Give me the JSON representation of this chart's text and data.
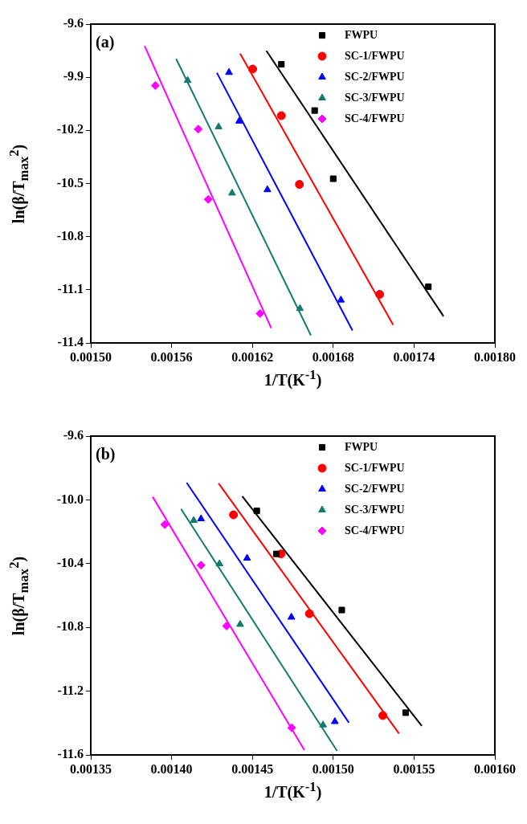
{
  "chart_data": [
    {
      "type": "scatter",
      "title": "(a)",
      "xlabel": "1/T(K$^{-1}$)",
      "ylabel": "ln(β/T$_{max}$$^{2}$)",
      "xlim": [
        0.0015,
        0.0018
      ],
      "xticks": [
        {
          "value": 0.0015,
          "label": "0.00150"
        },
        {
          "value": 0.00156,
          "label": "0.00156"
        },
        {
          "value": 0.00162,
          "label": "0.00162"
        },
        {
          "value": 0.00168,
          "label": "0.00168"
        },
        {
          "value": 0.00174,
          "label": "0.00174"
        },
        {
          "value": 0.0018,
          "label": "0.00180"
        }
      ],
      "ylim": [
        -11.4,
        -9.6
      ],
      "yticks": [
        -11.4,
        -11.1,
        -10.8,
        -10.5,
        -10.2,
        -9.9,
        -9.6
      ],
      "grid": false,
      "legend": "top right",
      "series": [
        {
          "name": "FWPU",
          "color": "#000000",
          "marker": "square",
          "x": [
            0.0016415,
            0.0016662,
            0.00168,
            0.0017506
          ],
          "values": [
            -9.827,
            -10.088,
            -10.473,
            -11.083
          ]
        },
        {
          "name": "SC-1/FWPU",
          "color": "#ff0000",
          "marker": "circle",
          "x": [
            0.0016202,
            0.0016415,
            0.0016549,
            0.0017145
          ],
          "values": [
            -9.854,
            -10.117,
            -10.505,
            -11.126
          ]
        },
        {
          "name": "SC-2/FWPU",
          "color": "#0000ff",
          "marker": "triangle",
          "x": [
            0.0016026,
            0.0016102,
            0.0016311,
            0.0016857
          ],
          "values": [
            -9.873,
            -10.148,
            -10.535,
            -11.158
          ]
        },
        {
          "name": "SC-3/FWPU",
          "color": "#157a6e",
          "marker": "triangle",
          "x": [
            0.0015719,
            0.0015949,
            0.0016049,
            0.0016553
          ],
          "values": [
            -9.918,
            -10.18,
            -10.554,
            -11.206
          ]
        },
        {
          "name": "SC-4/FWPU",
          "color": "#ff00ff",
          "marker": "diamond",
          "x": [
            0.0015479,
            0.0015798,
            0.0015872,
            0.0016257
          ],
          "values": [
            -9.947,
            -10.193,
            -10.59,
            -11.234
          ]
        },
        {
          "type": "line",
          "color": "#000000",
          "x": [
            0.0016304,
            0.0017619
          ],
          "values": [
            -9.751,
            -11.25
          ]
        },
        {
          "type": "line",
          "color": "#ff0000",
          "x": [
            0.0016109,
            0.0017245
          ],
          "values": [
            -9.767,
            -11.298
          ]
        },
        {
          "type": "line",
          "color": "#0000ff",
          "x": [
            0.0015936,
            0.0016943
          ],
          "values": [
            -9.875,
            -11.33
          ]
        },
        {
          "type": "line",
          "color": "#157a6e",
          "x": [
            0.0015634,
            0.0016634
          ],
          "values": [
            -9.796,
            -11.357
          ]
        },
        {
          "type": "line",
          "color": "#ff00ff",
          "x": [
            0.00154,
            0.001634
          ],
          "values": [
            -9.724,
            -11.317
          ]
        }
      ]
    },
    {
      "type": "scatter",
      "title": "(b)",
      "xlabel": "1/T(K$^{-1}$)",
      "ylabel": "ln(β/T$_{max}$$^{2}$)",
      "xlim": [
        0.00135,
        0.0016
      ],
      "xticks": [
        {
          "value": 0.00135,
          "label": "0.00135"
        },
        {
          "value": 0.0014,
          "label": "0.00140"
        },
        {
          "value": 0.00145,
          "label": "0.00145"
        },
        {
          "value": 0.0015,
          "label": "0.00150"
        },
        {
          "value": 0.00155,
          "label": "0.00155"
        },
        {
          "value": 0.0016,
          "label": "0.00160"
        }
      ],
      "ylim": [
        -11.6,
        -9.6
      ],
      "yticks": [
        -11.6,
        -11.2,
        -10.8,
        -10.4,
        {
          "value": -10.0,
          "label": "-10.0"
        },
        -9.6
      ],
      "grid": false,
      "legend": "top right",
      "series": [
        {
          "name": "FWPU",
          "color": "#000000",
          "marker": "square",
          "x": [
            0.0014527,
            0.0014648,
            0.0015053,
            0.0015448
          ],
          "values": [
            -10.069,
            -10.339,
            -10.691,
            -11.335
          ]
        },
        {
          "name": "SC-1/FWPU",
          "color": "#ff0000",
          "marker": "circle",
          "x": [
            0.0014383,
            0.0014677,
            0.0014853,
            0.0015307
          ],
          "values": [
            -10.094,
            -10.339,
            -10.714,
            -11.353
          ]
        },
        {
          "name": "SC-2/FWPU",
          "color": "#0000ff",
          "marker": "triangle",
          "x": [
            0.0014182,
            0.0014467,
            0.0014741,
            0.001501
          ],
          "values": [
            -10.119,
            -10.366,
            -10.736,
            -11.391
          ]
        },
        {
          "name": "SC-3/FWPU",
          "color": "#157a6e",
          "marker": "triangle",
          "x": [
            0.0014137,
            0.0014296,
            0.0014424,
            0.0014937
          ],
          "values": [
            -10.129,
            -10.401,
            -10.781,
            -11.412
          ]
        },
        {
          "name": "SC-4/FWPU",
          "color": "#ff00ff",
          "marker": "diamond",
          "x": [
            0.0013958,
            0.0014182,
            0.001434,
            0.0014743
          ],
          "values": [
            -10.155,
            -10.41,
            -10.791,
            -11.43
          ]
        },
        {
          "type": "line",
          "color": "#000000",
          "x": [
            0.0014437,
            0.0015548
          ],
          "values": [
            -9.977,
            -11.418
          ]
        },
        {
          "type": "line",
          "color": "#ff0000",
          "x": [
            0.0014291,
            0.0015407
          ],
          "values": [
            -9.897,
            -11.466
          ]
        },
        {
          "type": "line",
          "color": "#0000ff",
          "x": [
            0.0014093,
            0.0015097
          ],
          "values": [
            -9.892,
            -11.398
          ]
        },
        {
          "type": "line",
          "color": "#157a6e",
          "x": [
            0.0014059,
            0.0015024
          ],
          "values": [
            -10.058,
            -11.575
          ]
        },
        {
          "type": "line",
          "color": "#ff00ff",
          "x": [
            0.0013883,
            0.0014821
          ],
          "values": [
            -9.981,
            -11.568
          ]
        }
      ]
    }
  ]
}
